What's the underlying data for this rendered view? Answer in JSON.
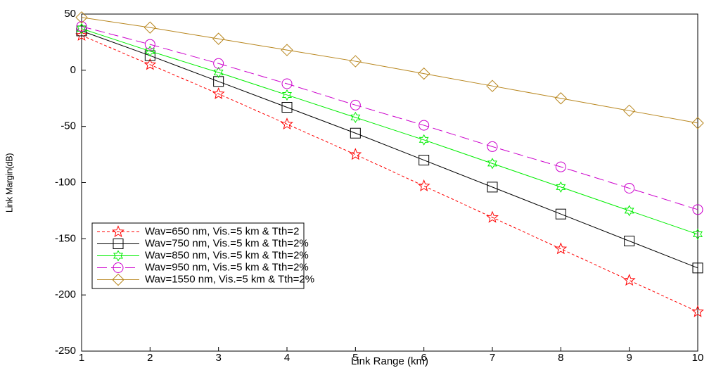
{
  "chart_data": {
    "type": "line",
    "xlabel": "Link Range (km)",
    "ylabel": "Link Margin(dB)",
    "x": [
      1,
      2,
      3,
      4,
      5,
      6,
      7,
      8,
      9,
      10
    ],
    "xlim": [
      1,
      10
    ],
    "xticks": [
      1,
      2,
      3,
      4,
      5,
      6,
      7,
      8,
      9,
      10
    ],
    "ylim": [
      -250,
      50
    ],
    "yticks": [
      -250,
      -200,
      -150,
      -100,
      -50,
      0,
      50
    ],
    "grid": false,
    "legend": "lower left",
    "series": [
      {
        "name": "Wav=650 nm, Vis.=5 km & Tth=2",
        "color": "#ff0000",
        "marker": "star",
        "linestyle": "dotted",
        "values": [
          31,
          5,
          -21,
          -48,
          -75,
          -103,
          -131,
          -159,
          -187,
          -215
        ]
      },
      {
        "name": "Wav=750 nm, Vis.=5 km & Tth=2%",
        "color": "#000000",
        "marker": "square",
        "linestyle": "solid",
        "values": [
          35,
          13,
          -10,
          -33,
          -56,
          -80,
          -104,
          -128,
          -152,
          -176
        ]
      },
      {
        "name": "Wav=850 nm, Vis.=5 km & Tth=2%",
        "color": "#00ee00",
        "marker": "hexagram",
        "linestyle": "solid",
        "values": [
          37,
          17,
          -2,
          -22,
          -42,
          -62,
          -83,
          -104,
          -125,
          -146
        ]
      },
      {
        "name": "Wav=950 nm, Vis.=5 km & Tth=2%",
        "color": "#cc00cc",
        "marker": "circle",
        "linestyle": "dashed",
        "values": [
          39,
          23,
          6,
          -12,
          -31,
          -49,
          -68,
          -86,
          -105,
          -124
        ]
      },
      {
        "name": "Wav=1550 nm, Vis.=5 km & Tth=2%",
        "color": "#b8861e",
        "marker": "diamond",
        "linestyle": "solid",
        "values": [
          47,
          38,
          28,
          18,
          8,
          -3,
          -14,
          -25,
          -36,
          -47
        ]
      }
    ]
  }
}
